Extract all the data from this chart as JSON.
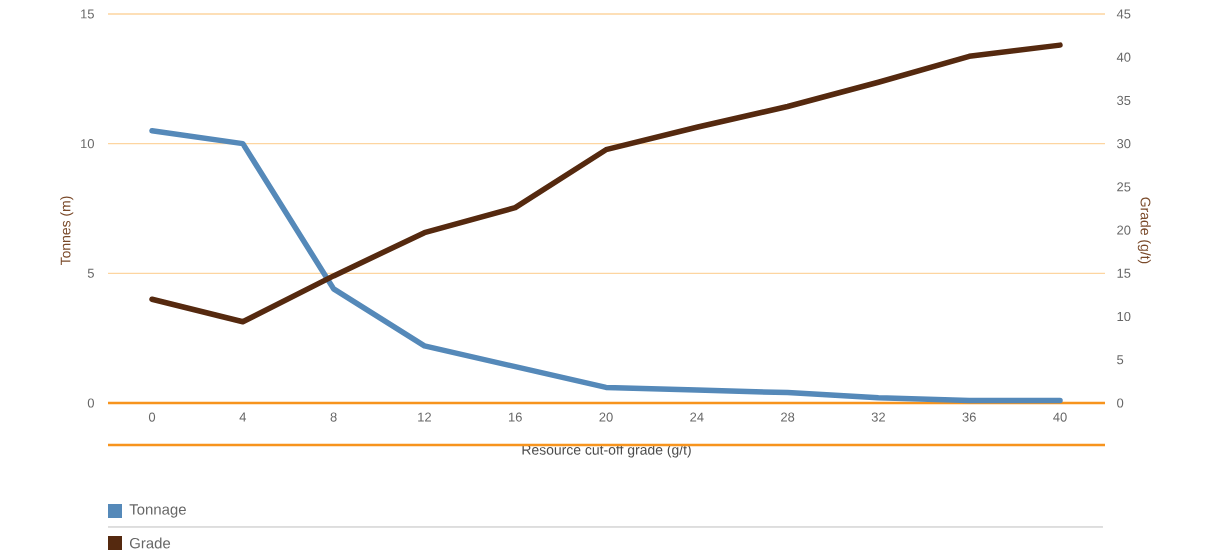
{
  "chart_data": {
    "type": "line",
    "xlabel": "Resource cut-off grade (g/t)",
    "ylabel": "Tonnes (m)",
    "y2label": "Grade (g/t)",
    "categories": [
      "0",
      "4",
      "8",
      "12",
      "16",
      "20",
      "24",
      "28",
      "32",
      "36",
      "40"
    ],
    "series": [
      {
        "name": "Tonnage",
        "color": "#5589b9",
        "values": [
          10.5,
          10.0,
          4.4,
          2.2,
          1.4,
          0.6,
          0.5,
          0.4,
          0.2,
          0.1,
          0.1
        ]
      },
      {
        "name": "Grade",
        "color": "#55290f",
        "axis": "y2",
        "values": [
          12.0,
          9.4,
          14.7,
          19.7,
          22.6,
          29.3,
          31.9,
          34.3,
          37.1,
          40.1,
          41.4
        ]
      }
    ],
    "ylim": [
      0,
      15
    ],
    "yticks": [
      0,
      5,
      10,
      15
    ],
    "y2lim": [
      0,
      45
    ],
    "y2ticks": [
      0,
      5,
      10,
      15,
      20,
      25,
      30,
      35,
      40,
      45
    ],
    "grid": "y",
    "legend": "bottom",
    "marker": "none",
    "line_style": "solid"
  }
}
